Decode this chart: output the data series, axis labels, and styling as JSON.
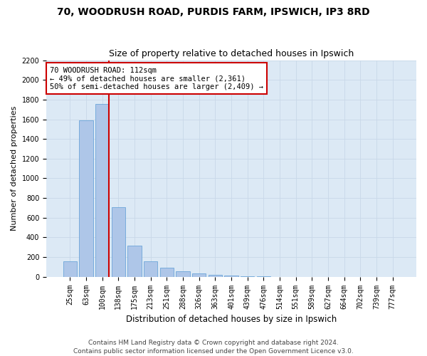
{
  "title1": "70, WOODRUSH ROAD, PURDIS FARM, IPSWICH, IP3 8RD",
  "title2": "Size of property relative to detached houses in Ipswich",
  "xlabel": "Distribution of detached houses by size in Ipswich",
  "ylabel": "Number of detached properties",
  "categories": [
    "25sqm",
    "63sqm",
    "100sqm",
    "138sqm",
    "175sqm",
    "213sqm",
    "251sqm",
    "288sqm",
    "326sqm",
    "363sqm",
    "401sqm",
    "439sqm",
    "476sqm",
    "514sqm",
    "551sqm",
    "589sqm",
    "627sqm",
    "664sqm",
    "702sqm",
    "739sqm",
    "777sqm"
  ],
  "values": [
    155,
    1590,
    1755,
    705,
    315,
    160,
    90,
    55,
    35,
    20,
    12,
    8,
    5,
    0,
    0,
    0,
    0,
    0,
    0,
    0,
    0
  ],
  "bar_color": "#aec6e8",
  "bar_edge_color": "#5b9bd5",
  "vline_color": "#cc0000",
  "vline_x_index": 2,
  "annotation_text": "70 WOODRUSH ROAD: 112sqm\n← 49% of detached houses are smaller (2,361)\n50% of semi-detached houses are larger (2,409) →",
  "annotation_box_color": "#ffffff",
  "annotation_box_edge": "#cc0000",
  "ylim": [
    0,
    2200
  ],
  "yticks": [
    0,
    200,
    400,
    600,
    800,
    1000,
    1200,
    1400,
    1600,
    1800,
    2000,
    2200
  ],
  "grid_color": "#c8d8e8",
  "bg_color": "#dce9f5",
  "footer1": "Contains HM Land Registry data © Crown copyright and database right 2024.",
  "footer2": "Contains public sector information licensed under the Open Government Licence v3.0.",
  "title1_fontsize": 10,
  "title2_fontsize": 9,
  "xlabel_fontsize": 8.5,
  "ylabel_fontsize": 8,
  "tick_fontsize": 7,
  "footer_fontsize": 6.5,
  "annotation_fontsize": 7.5
}
